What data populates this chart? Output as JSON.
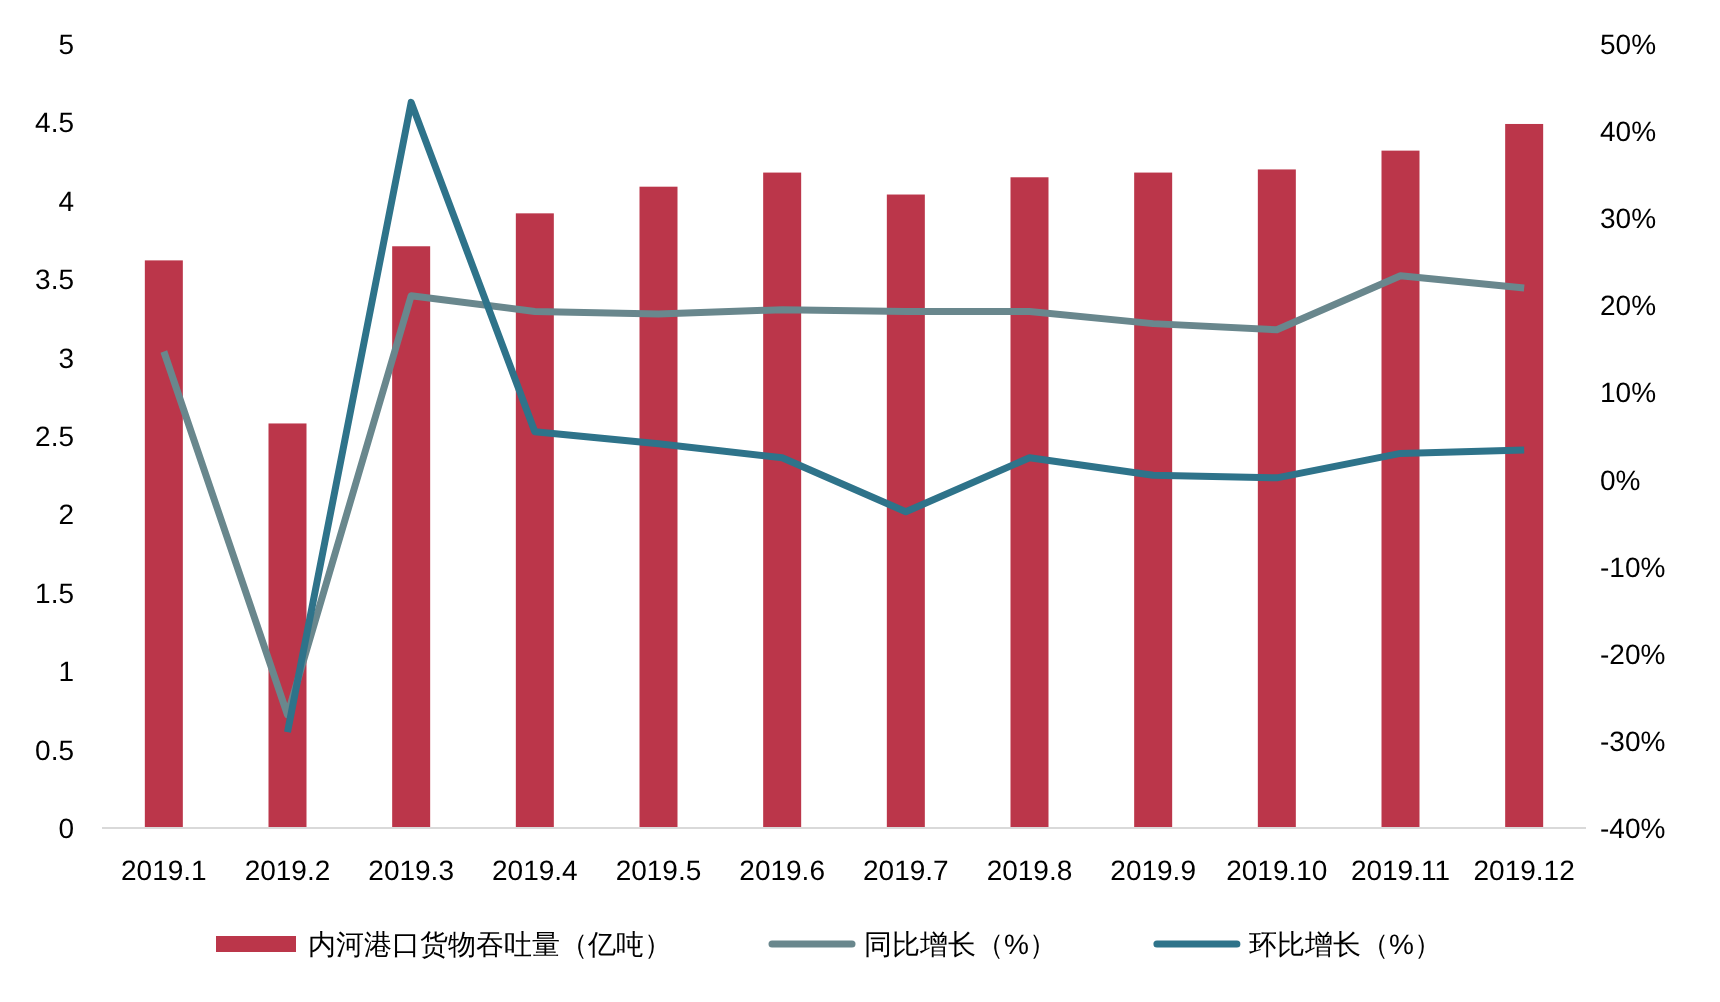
{
  "chart_data": {
    "type": "bar",
    "categories": [
      "2019.1",
      "2019.2",
      "2019.3",
      "2019.4",
      "2019.5",
      "2019.6",
      "2019.7",
      "2019.8",
      "2019.9",
      "2019.10",
      "2019.11",
      "2019.12"
    ],
    "series": [
      {
        "name": "内河港口货物吞吐量（亿吨）",
        "color": "#bb364a",
        "values": [
          3.62,
          2.58,
          3.71,
          3.92,
          4.09,
          4.18,
          4.04,
          4.15,
          4.18,
          4.2,
          4.32,
          4.49
        ]
      },
      {
        "name": "同比增长（%）",
        "type": "line",
        "axis": "y2",
        "color": "#69878d",
        "values": [
          14.7,
          -27,
          21.1,
          19.3,
          19,
          19.5,
          19.3,
          19.3,
          17.9,
          17.2,
          23.4,
          22
        ]
      },
      {
        "name": "环比增长（%）",
        "type": "line",
        "axis": "y2",
        "color": "#2e738a",
        "values": [
          null,
          -29,
          43.3,
          5.5,
          4.1,
          2.5,
          -3.7,
          2.5,
          0.5,
          0.2,
          3,
          3.4
        ]
      }
    ],
    "ylim": [
      0,
      5
    ],
    "yticks": [
      0,
      0.5,
      1,
      1.5,
      2,
      2.5,
      3,
      3.5,
      4,
      4.5,
      5
    ],
    "y2lim": [
      -40,
      50
    ],
    "y2ticks": [
      {
        "value": -40,
        "label": "-40%"
      },
      {
        "value": -30,
        "label": "-30%"
      },
      {
        "value": -20,
        "label": "-20%"
      },
      {
        "value": -10,
        "label": "-10%"
      },
      {
        "value": 0,
        "label": "0%"
      },
      {
        "value": 10,
        "label": "10%"
      },
      {
        "value": 20,
        "label": "20%"
      },
      {
        "value": 30,
        "label": "30%"
      },
      {
        "value": 40,
        "label": "40%"
      },
      {
        "value": 50,
        "label": "50%"
      }
    ],
    "legend": "bottom"
  }
}
